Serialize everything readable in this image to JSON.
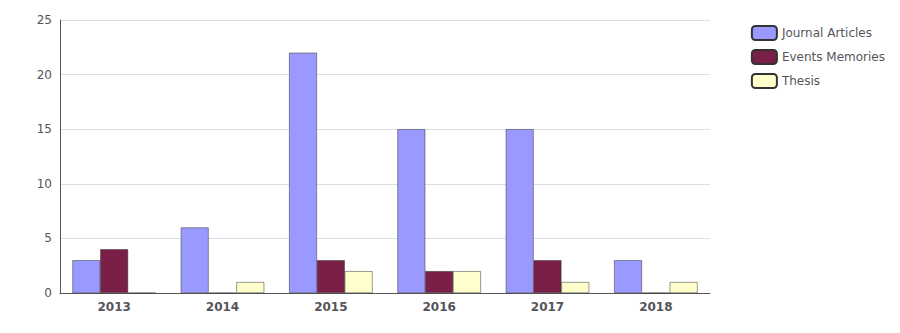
{
  "chart_data": {
    "type": "bar",
    "categories": [
      "2013",
      "2014",
      "2015",
      "2016",
      "2017",
      "2018"
    ],
    "series": [
      {
        "name": "Journal Articles",
        "color": "#9999ff",
        "values": [
          3,
          6,
          22,
          15,
          15,
          3
        ]
      },
      {
        "name": "Events Memories",
        "color": "#7a2048",
        "values": [
          4,
          0,
          3,
          2,
          3,
          0
        ]
      },
      {
        "name": "Thesis",
        "color": "#ffffcc",
        "values": [
          0,
          1,
          2,
          2,
          1,
          1
        ]
      }
    ],
    "ylim": [
      0,
      25
    ],
    "yticks": [
      0,
      5,
      10,
      15,
      20,
      25
    ],
    "grid": true,
    "legend": "upper right"
  }
}
